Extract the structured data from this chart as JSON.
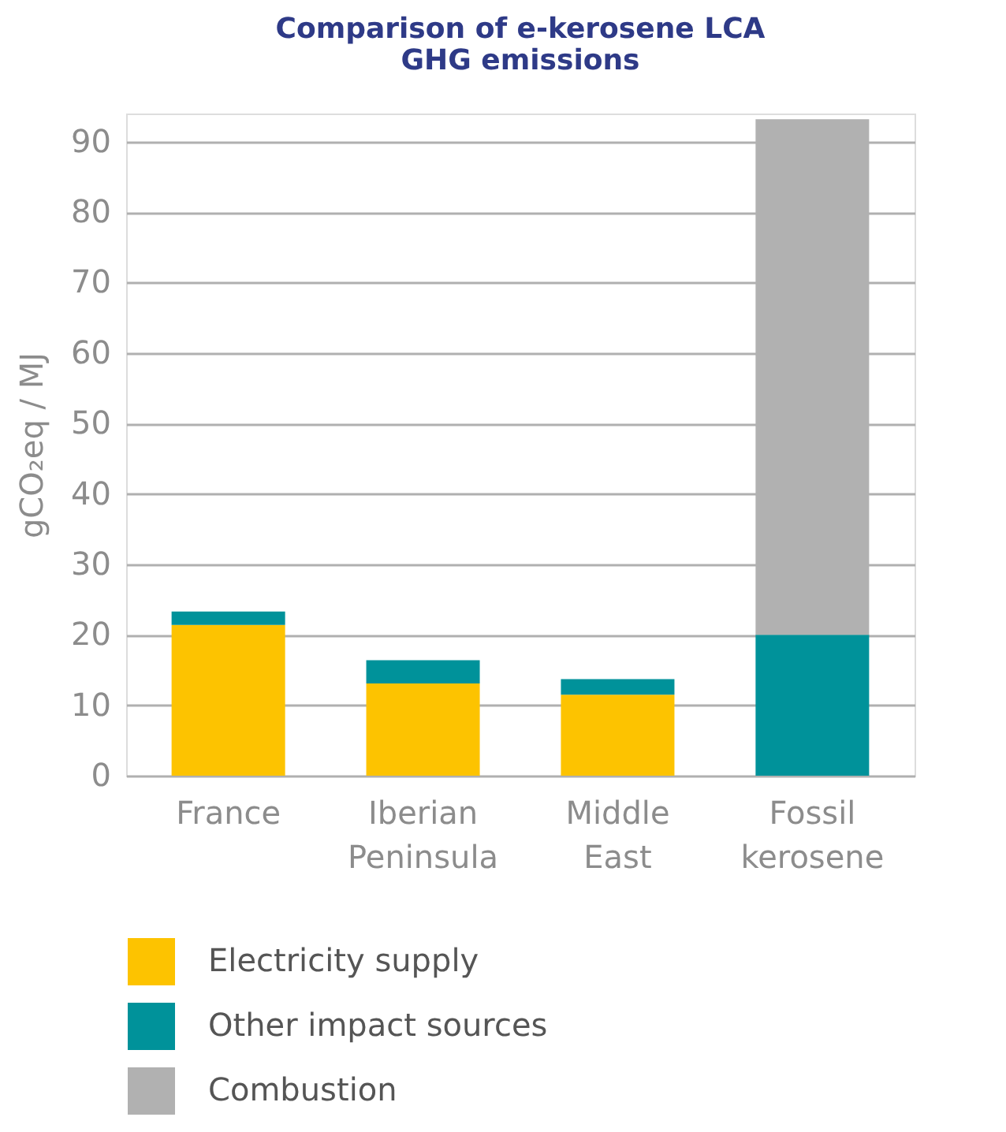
{
  "chart_data": {
    "type": "bar",
    "title": "Comparison of e-kerosene LCA\nGHG emissions",
    "ylabel": "gCO₂eq / MJ",
    "categories": [
      "France",
      "Iberian Peninsula",
      "Middle East",
      "Fossil kerosene"
    ],
    "stacked": true,
    "series": [
      {
        "name": "Electricity supply",
        "color": "#fdc300",
        "values": [
          21.4,
          13.1,
          11.5,
          0
        ]
      },
      {
        "name": "Other impact sources",
        "color": "#00929a",
        "values": [
          1.9,
          3.3,
          2.2,
          20.0
        ]
      },
      {
        "name": "Combustion",
        "color": "#b1b1b1",
        "values": [
          0,
          0,
          0,
          73.2
        ]
      }
    ],
    "ylim": [
      0,
      94
    ],
    "yticks": [
      0,
      10,
      20,
      30,
      40,
      50,
      60,
      70,
      80,
      90
    ],
    "grid": "y",
    "legend": "bottom"
  }
}
